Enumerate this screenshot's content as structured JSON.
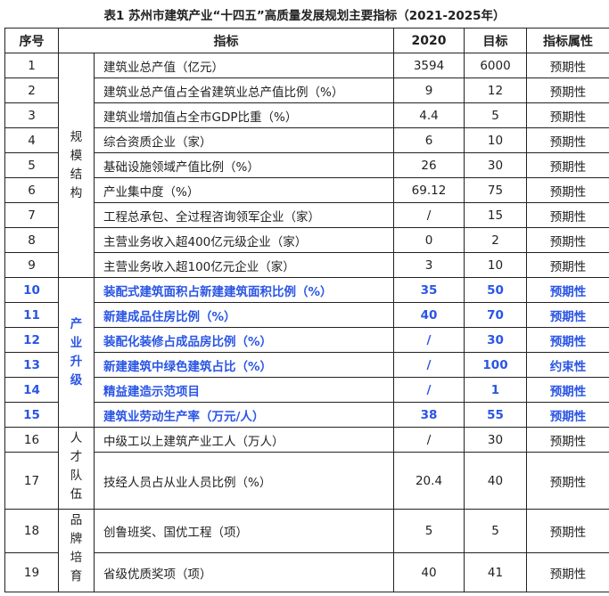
{
  "title": "表1 苏州市建筑产业“十四五”高质量发展规划主要指标（2021-2025年）",
  "headers": [
    "序号",
    "指标",
    "2020",
    "目标",
    "指标属性"
  ],
  "groups": [
    "规模结构",
    "产业升级",
    "人才队伍",
    "品牌培育"
  ],
  "rows": [
    {
      "no": "1",
      "name": "建筑业总产值（亿元）",
      "y2020": "3594",
      "target": "6000",
      "attr": "预期性"
    },
    {
      "no": "2",
      "name": "建筑业总产值占全省建筑业总产值比例（%）",
      "y2020": "9",
      "target": "12",
      "attr": "预期性"
    },
    {
      "no": "3",
      "name": "建筑业增加值占全市GDP比重（%）",
      "y2020": "4.4",
      "target": "5",
      "attr": "预期性"
    },
    {
      "no": "4",
      "name": "综合资质企业（家）",
      "y2020": "6",
      "target": "10",
      "attr": "预期性"
    },
    {
      "no": "5",
      "name": "基础设施领域产值比例（%）",
      "y2020": "26",
      "target": "30",
      "attr": "预期性"
    },
    {
      "no": "6",
      "name": "产业集中度（%）",
      "y2020": "69.12",
      "target": "75",
      "attr": "预期性"
    },
    {
      "no": "7",
      "name": "工程总承包、全过程咨询领军企业（家）",
      "y2020": "/",
      "target": "15",
      "attr": "预期性"
    },
    {
      "no": "8",
      "name": "主营业务收入超400亿元级企业（家）",
      "y2020": "0",
      "target": "2",
      "attr": "预期性"
    },
    {
      "no": "9",
      "name": "主营业务收入超100亿元企业（家）",
      "y2020": "3",
      "target": "10",
      "attr": "预期性"
    },
    {
      "no": "10",
      "name": "装配式建筑面积占新建建筑面积比例（%）",
      "y2020": "35",
      "target": "50",
      "attr": "预期性"
    },
    {
      "no": "11",
      "name": "新建成品住房比例（%）",
      "y2020": "40",
      "target": "70",
      "attr": "预期性"
    },
    {
      "no": "12",
      "name": "装配化装修占成品房比例（%）",
      "y2020": "/",
      "target": "30",
      "attr": "预期性"
    },
    {
      "no": "13",
      "name": "新建建筑中绿色建筑占比（%）",
      "y2020": "/",
      "target": "100",
      "attr": "约束性"
    },
    {
      "no": "14",
      "name": "精益建造示范项目",
      "y2020": "/",
      "target": "1",
      "attr": "预期性"
    },
    {
      "no": "15",
      "name": "建筑业劳动生产率（万元/人）",
      "y2020": "38",
      "target": "55",
      "attr": "预期性"
    },
    {
      "no": "16",
      "name": "中级工以上建筑产业工人（万人）",
      "y2020": "/",
      "target": "30",
      "attr": "预期性"
    },
    {
      "no": "17",
      "name": "技经人员占从业人员比例（%）",
      "y2020": "20.4",
      "target": "40",
      "attr": "预期性"
    },
    {
      "no": "18",
      "name": "创鲁班奖、国优工程（项）",
      "y2020": "5",
      "target": "5",
      "attr": "预期性"
    },
    {
      "no": "19",
      "name": "省级优质奖项（项）",
      "y2020": "40",
      "target": "41",
      "attr": "预期性"
    }
  ],
  "colors": {
    "highlight": "#2a55e5",
    "text": "#222222"
  }
}
